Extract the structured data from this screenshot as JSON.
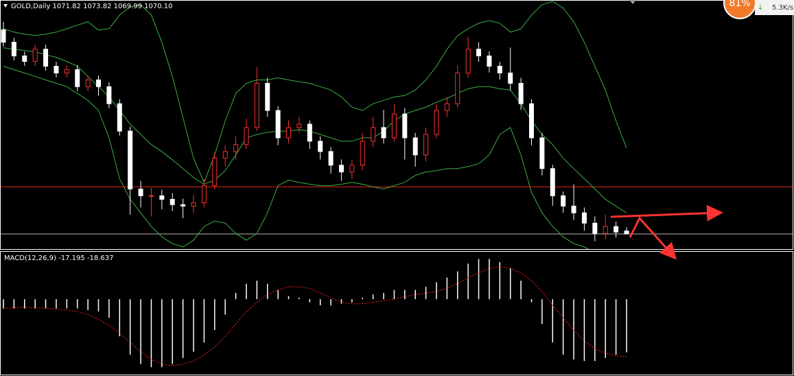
{
  "chart_data": {
    "type": "candlestick",
    "title": "GOLD,Daily 1071.82 1073.82 1069.99 1070.10",
    "up_color": "#ff3030",
    "down_color": "#ffffff",
    "ylim": [
      1062,
      1201
    ],
    "open": [
      1185.0,
      1178.0,
      1170.3,
      1167.2,
      1174.1,
      1164.5,
      1160.7,
      1162.6,
      1153.0,
      1156.8,
      1153.0,
      1143.4,
      1128.0,
      1095.4,
      1091.6,
      1091.6,
      1089.6,
      1086.6,
      1085.8,
      1087.7,
      1097.3,
      1112.7,
      1116.5,
      1120.4,
      1130.0,
      1154.9,
      1139.6,
      1124.2,
      1130.0,
      1131.9,
      1122.3,
      1116.5,
      1108.8,
      1105.0,
      1108.8,
      1122.3,
      1130.0,
      1124.2,
      1137.6,
      1124.2,
      1114.6,
      1126.1,
      1139.6,
      1143.4,
      1160.7,
      1174.1,
      1170.3,
      1164.5,
      1160.7,
      1154.9,
      1143.4,
      1124.2,
      1106.9,
      1091.6,
      1085.8,
      1082.0,
      1076.2,
      1070.4,
      1074.3,
      1071.82
    ],
    "high": [
      1189.5,
      1180.5,
      1172.8,
      1176.6,
      1176.6,
      1167.0,
      1165.1,
      1165.1,
      1159.3,
      1159.3,
      1155.5,
      1145.9,
      1130.5,
      1100.0,
      1096.0,
      1095.0,
      1093.0,
      1090.0,
      1092.0,
      1101.0,
      1116.0,
      1120.0,
      1125.0,
      1135.0,
      1164.0,
      1158.0,
      1142.0,
      1134.0,
      1136.0,
      1134.0,
      1125.0,
      1119.0,
      1112.0,
      1112.0,
      1127.0,
      1136.0,
      1140.0,
      1143.0,
      1141.0,
      1127.0,
      1130.0,
      1143.0,
      1147.0,
      1165.0,
      1181.0,
      1178.0,
      1173.0,
      1167.0,
      1175.0,
      1158.0,
      1146.0,
      1127.0,
      1109.0,
      1094.0,
      1098.0,
      1085.0,
      1080.0,
      1081.0,
      1077.0,
      1073.82
    ],
    "low": [
      1175.5,
      1167.8,
      1164.7,
      1164.7,
      1162.0,
      1158.2,
      1158.2,
      1150.5,
      1150.5,
      1148.0,
      1140.9,
      1125.5,
      1081.0,
      1085.0,
      1080.0,
      1084.0,
      1083.0,
      1079.0,
      1082.0,
      1085.0,
      1095.0,
      1108.0,
      1112.0,
      1118.0,
      1128.0,
      1136.0,
      1120.0,
      1121.0,
      1127.0,
      1118.0,
      1112.0,
      1104.0,
      1100.0,
      1101.0,
      1106.0,
      1119.0,
      1121.0,
      1122.0,
      1112.0,
      1108.0,
      1111.0,
      1124.0,
      1136.0,
      1141.0,
      1158.0,
      1167.0,
      1161.0,
      1157.0,
      1151.0,
      1140.0,
      1120.0,
      1103.0,
      1086.0,
      1082.0,
      1078.0,
      1072.0,
      1066.0,
      1067.0,
      1068.0,
      1069.99
    ],
    "close": [
      1178.0,
      1170.3,
      1167.2,
      1174.1,
      1164.5,
      1160.7,
      1162.6,
      1153.0,
      1156.8,
      1153.0,
      1143.4,
      1128.0,
      1095.4,
      1091.6,
      1091.6,
      1089.6,
      1086.6,
      1085.8,
      1087.7,
      1097.3,
      1112.7,
      1116.5,
      1120.4,
      1130.0,
      1154.9,
      1139.6,
      1124.2,
      1130.0,
      1131.9,
      1122.3,
      1116.5,
      1108.8,
      1105.0,
      1108.8,
      1122.3,
      1130.0,
      1124.2,
      1137.6,
      1124.2,
      1114.6,
      1126.1,
      1139.6,
      1143.4,
      1160.7,
      1174.1,
      1170.3,
      1164.5,
      1160.7,
      1154.9,
      1143.4,
      1124.2,
      1106.9,
      1091.6,
      1085.8,
      1082.0,
      1076.2,
      1070.4,
      1074.3,
      1071.2,
      1070.1
    ],
    "bands": {
      "color": "#3cb043",
      "upper": [
        1185.6,
        1183.7,
        1182.6,
        1181.8,
        1182.6,
        1183.7,
        1185.6,
        1187.6,
        1189.5,
        1184.9,
        1185.6,
        1193.3,
        1197.9,
        1199.1,
        1193.3,
        1178.0,
        1158.8,
        1135.7,
        1112.7,
        1099.2,
        1114.6,
        1133.8,
        1149.2,
        1154.9,
        1156.8,
        1156.8,
        1158.0,
        1156.8,
        1155.7,
        1154.9,
        1153.0,
        1151.1,
        1147.2,
        1141.5,
        1139.6,
        1143.4,
        1145.3,
        1147.2,
        1148.0,
        1151.1,
        1156.8,
        1164.5,
        1174.1,
        1181.8,
        1185.6,
        1188.7,
        1190.2,
        1188.7,
        1183.7,
        1185.6,
        1193.3,
        1199.1,
        1201.0,
        1197.2,
        1189.5,
        1178.0,
        1164.5,
        1151.1,
        1133.8,
        1118.4
      ],
      "middle": [
        1174.9,
        1174.1,
        1173.4,
        1172.6,
        1171.0,
        1169.5,
        1167.2,
        1164.5,
        1158.8,
        1153.0,
        1147.2,
        1139.6,
        1131.9,
        1126.1,
        1120.4,
        1116.5,
        1111.9,
        1106.9,
        1101.9,
        1098.1,
        1100.4,
        1105.8,
        1114.6,
        1124.2,
        1126.1,
        1127.3,
        1128.0,
        1128.0,
        1128.8,
        1128.0,
        1126.1,
        1124.2,
        1122.3,
        1122.3,
        1124.2,
        1124.2,
        1128.0,
        1133.8,
        1137.6,
        1139.6,
        1141.5,
        1144.2,
        1146.5,
        1149.2,
        1151.8,
        1153.0,
        1153.0,
        1151.8,
        1151.1,
        1143.4,
        1133.8,
        1126.1,
        1120.4,
        1112.7,
        1106.9,
        1101.2,
        1095.4,
        1089.6,
        1085.8,
        1082.0
      ],
      "lower": [
        1164.5,
        1162.6,
        1160.7,
        1158.8,
        1156.8,
        1154.9,
        1153.0,
        1149.2,
        1145.3,
        1139.6,
        1124.2,
        1101.2,
        1089.6,
        1082.0,
        1074.3,
        1068.5,
        1064.7,
        1062.8,
        1066.6,
        1074.3,
        1077.4,
        1076.2,
        1070.4,
        1066.6,
        1070.4,
        1082.0,
        1097.3,
        1100.4,
        1099.2,
        1098.1,
        1097.3,
        1097.3,
        1098.1,
        1099.2,
        1098.1,
        1096.6,
        1095.4,
        1097.3,
        1099.2,
        1103.1,
        1105.0,
        1105.8,
        1106.9,
        1106.9,
        1108.1,
        1109.6,
        1114.6,
        1126.1,
        1130.0,
        1114.6,
        1093.5,
        1082.0,
        1074.3,
        1068.5,
        1064.7,
        1062.8,
        1059.7,
        1057.0,
        1055.1,
        1053.2
      ]
    },
    "hlines": [
      {
        "value": 1096.6,
        "color": "#e0201a"
      },
      {
        "value": 1070.1,
        "color": "#b8b8b8"
      }
    ],
    "indicator": {
      "title": "MACD(12,26,9) -17.195 -18.637",
      "ylim": [
        -24.4,
        15.1
      ],
      "histogram": {
        "color": "#ffffff",
        "values": [
          -3,
          -3,
          -3,
          -3,
          -3,
          -3,
          -3,
          -3,
          -3.5,
          -4,
          -6,
          -12,
          -18,
          -21,
          -22,
          -22,
          -21,
          -19,
          -17,
          -14,
          -10,
          -5,
          2,
          5,
          6,
          5,
          3,
          1,
          0.5,
          -1,
          -2,
          -2,
          -1.5,
          -1,
          0.5,
          1.5,
          2,
          3,
          3,
          3,
          4,
          5.5,
          7,
          9,
          11.5,
          13,
          13,
          12,
          10,
          6,
          -1,
          -8,
          -14,
          -18,
          -19.5,
          -20,
          -20,
          -19,
          -18,
          -17.195
        ]
      },
      "signal": {
        "color": "#ff2020",
        "values": [
          -3.0,
          -2.8,
          -2.6,
          -2.8,
          -3.0,
          -3.2,
          -3.5,
          -4.0,
          -5.0,
          -6.5,
          -8.5,
          -11,
          -14,
          -17,
          -19.5,
          -21,
          -21.5,
          -21,
          -20,
          -18,
          -15.5,
          -12,
          -8,
          -4,
          -1,
          1.5,
          3,
          4,
          4,
          3.5,
          2,
          0.5,
          -1,
          -1.5,
          -1.5,
          -1,
          -0.5,
          0,
          0.8,
          1.5,
          2,
          2.5,
          3.5,
          5,
          7,
          8.5,
          10,
          10.5,
          10,
          8.5,
          6,
          2.5,
          -2,
          -6,
          -10,
          -13.5,
          -16,
          -17.5,
          -18.3,
          -18.637
        ]
      }
    }
  },
  "status": {
    "percent": "81%",
    "speed": "5.3K/s"
  }
}
